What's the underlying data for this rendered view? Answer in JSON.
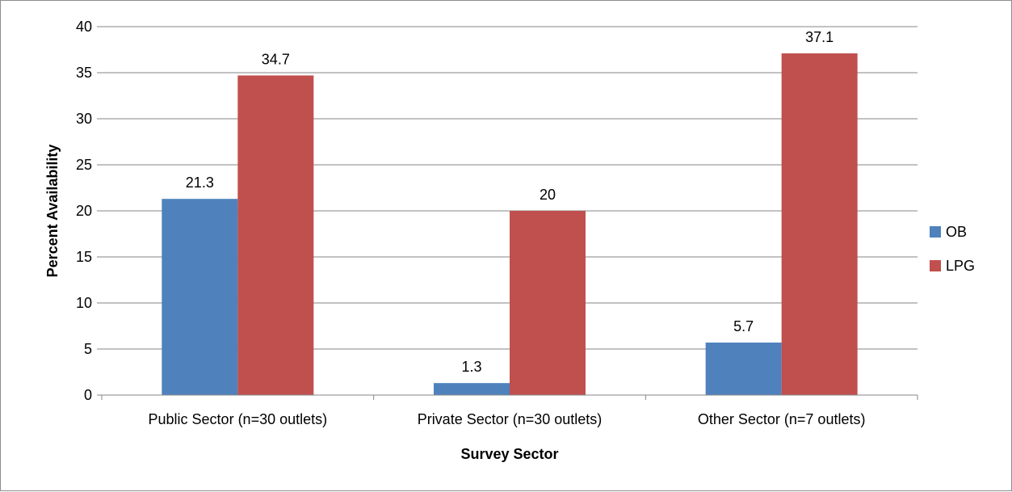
{
  "chart_data": {
    "type": "bar",
    "title": "",
    "xlabel": "Survey Sector",
    "ylabel": "Percent Availability",
    "categories": [
      "Public Sector  (n=30 outlets)",
      "Private Sector (n=30 outlets)",
      "Other Sector (n=7 outlets)"
    ],
    "series": [
      {
        "name": "OB",
        "color": "#4f81bd",
        "values": [
          21.3,
          1.3,
          5.7
        ],
        "labels": [
          "21.3",
          "1.3",
          "5.7"
        ]
      },
      {
        "name": "LPG",
        "color": "#c0504d",
        "values": [
          34.7,
          20,
          37.1
        ],
        "labels": [
          "34.7",
          "20",
          "37.1"
        ]
      }
    ],
    "ylim": [
      0,
      40
    ],
    "yticks": [
      "0",
      "5",
      "10",
      "15",
      "20",
      "25",
      "30",
      "35",
      "40"
    ],
    "grid": true,
    "legend_position": "right"
  }
}
